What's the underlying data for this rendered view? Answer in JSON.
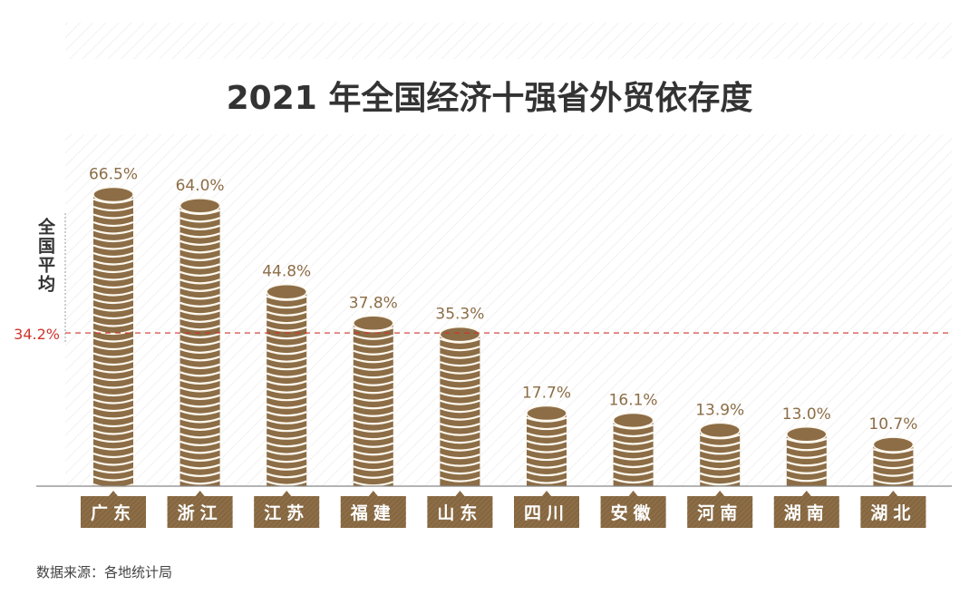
{
  "chart_data": {
    "type": "bar",
    "title": "2021 年全国经济十强省外贸依存度",
    "categories": [
      "广东",
      "浙江",
      "江苏",
      "福建",
      "山东",
      "四川",
      "安徽",
      "河南",
      "湖南",
      "湖北"
    ],
    "values": [
      66.5,
      64.0,
      44.8,
      37.8,
      35.3,
      17.7,
      16.1,
      13.9,
      13.0,
      10.7
    ],
    "value_labels": [
      "66.5%",
      "64.0%",
      "44.8%",
      "37.8%",
      "35.3%",
      "17.7%",
      "16.1%",
      "13.9%",
      "13.0%",
      "10.7%"
    ],
    "reference_line": {
      "label": "全国平均",
      "value": 34.2,
      "value_label": "34.2%"
    },
    "ylim": [
      0,
      70
    ],
    "xlabel": "",
    "ylabel": "",
    "source": "数据来源：各地统计局",
    "colors": {
      "bar": "#8c6d46",
      "ring": "#fdf8ee",
      "reference": "#d0342c",
      "label_text": "#8c6d46",
      "title": "#333333"
    }
  }
}
